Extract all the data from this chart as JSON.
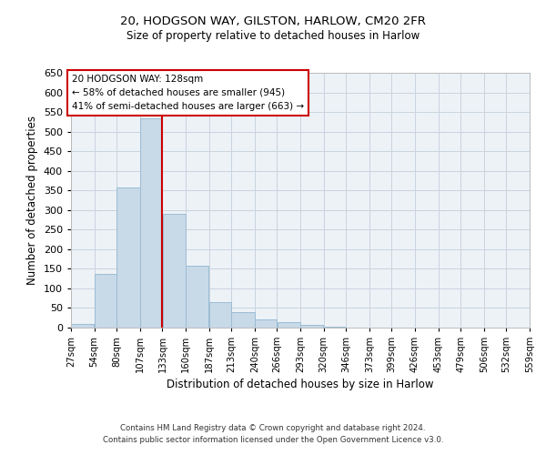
{
  "title1": "20, HODGSON WAY, GILSTON, HARLOW, CM20 2FR",
  "title2": "Size of property relative to detached houses in Harlow",
  "xlabel": "Distribution of detached houses by size in Harlow",
  "ylabel": "Number of detached properties",
  "bar_color": "#c8d9e8",
  "bar_edge_color": "#9bbdd4",
  "background_color": "#edf2f7",
  "grid_color": "#c8d4de",
  "vline_x": 133,
  "vline_color": "#cc0000",
  "annotation_line1": "20 HODGSON WAY: 128sqm",
  "annotation_line2": "← 58% of detached houses are smaller (945)",
  "annotation_line3": "41% of semi-detached houses are larger (663) →",
  "annotation_box_color": "#cc0000",
  "bin_edges": [
    27,
    54,
    80,
    107,
    133,
    160,
    187,
    213,
    240,
    266,
    293,
    320,
    346,
    373,
    399,
    426,
    453,
    479,
    506,
    532,
    559
  ],
  "bar_heights": [
    10,
    136,
    357,
    535,
    290,
    157,
    65,
    40,
    20,
    13,
    8,
    3,
    1,
    0,
    0,
    0,
    1,
    0,
    0,
    1
  ],
  "ylim": [
    0,
    650
  ],
  "yticks": [
    0,
    50,
    100,
    150,
    200,
    250,
    300,
    350,
    400,
    450,
    500,
    550,
    600,
    650
  ],
  "footer_line1": "Contains HM Land Registry data © Crown copyright and database right 2024.",
  "footer_line2": "Contains public sector information licensed under the Open Government Licence v3.0."
}
